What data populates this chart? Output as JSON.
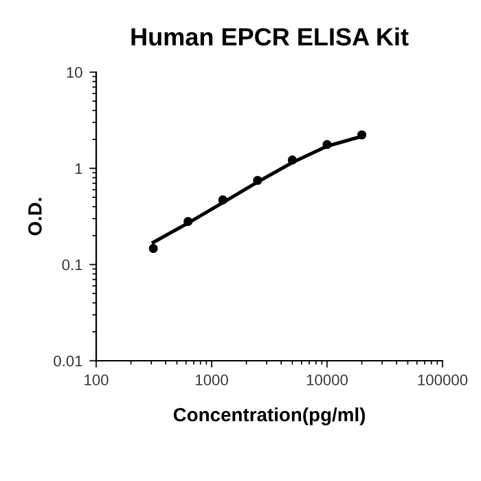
{
  "chart_data": {
    "type": "scatter",
    "title": "Human EPCR ELISA Kit",
    "xlabel": "Concentration(pg/ml)",
    "ylabel": "O.D.",
    "log": "xy",
    "grid": false,
    "legend": false,
    "series": [
      {
        "color": "#000000",
        "marker": "circle",
        "x": [
          312.5,
          625,
          1250,
          2500,
          5000,
          10000,
          20000
        ],
        "values": [
          0.147,
          0.28,
          0.47,
          0.75,
          1.22,
          1.77,
          2.23
        ]
      },
      {
        "type": "line",
        "color": "#000000",
        "marker": "none",
        "line_style": "solid",
        "x": [
          312.5,
          625,
          1250,
          2500,
          5000,
          10000,
          20000
        ],
        "values": [
          0.17,
          0.27,
          0.44,
          0.72,
          1.15,
          1.7,
          2.15
        ]
      }
    ],
    "xlim": [
      100,
      100000
    ],
    "xticks": [
      100,
      1000,
      10000,
      100000
    ],
    "ylim": [
      0.01,
      10
    ],
    "yticks": [
      0.01,
      0.1,
      1,
      10
    ]
  }
}
